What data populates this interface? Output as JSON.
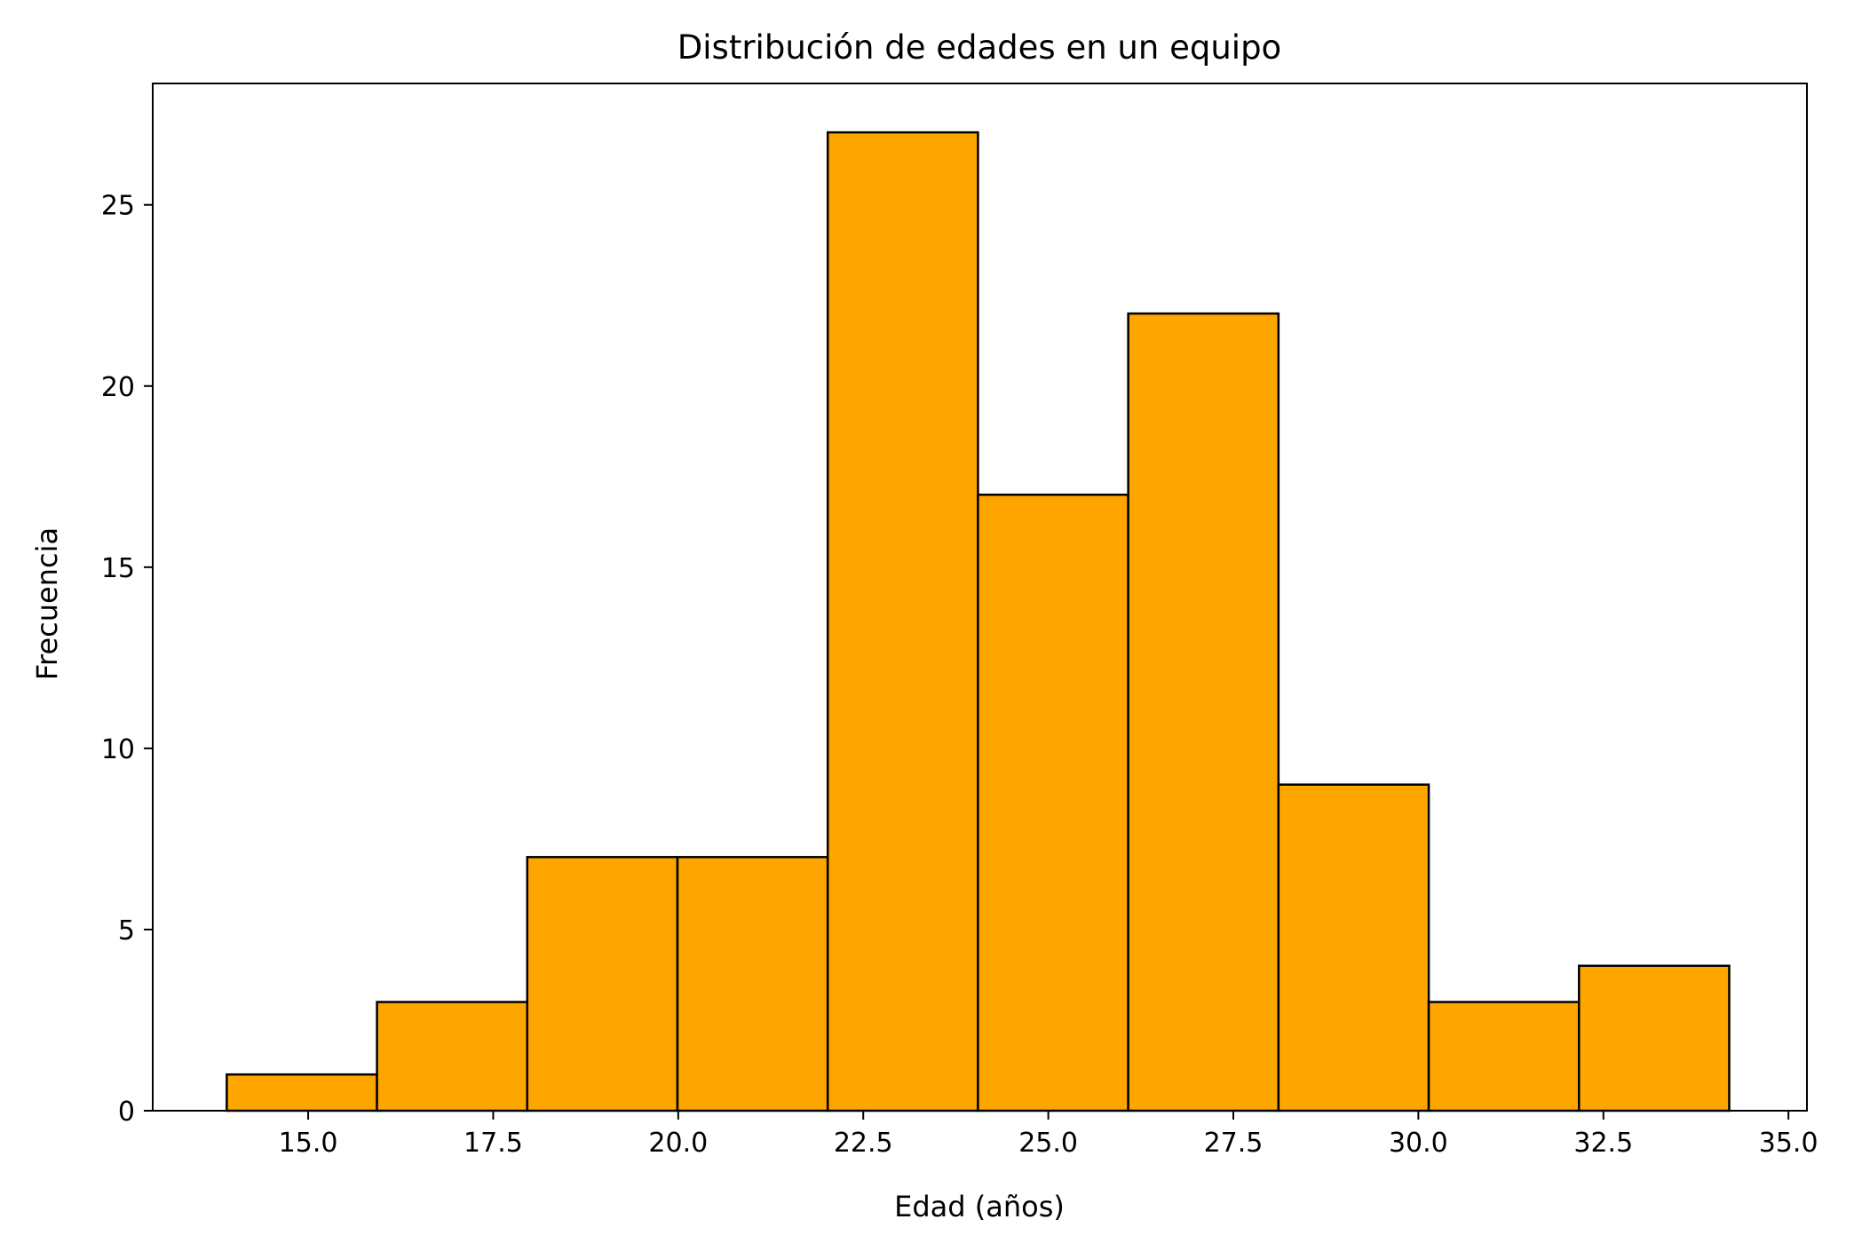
{
  "chart_data": {
    "type": "bar",
    "subtype": "histogram",
    "title": "Distribución de edades en un equipo",
    "xlabel": "Edad (años)",
    "ylabel": "Frecuencia",
    "bins": [
      {
        "start": 13.9,
        "end": 15.93,
        "count": 1
      },
      {
        "start": 15.93,
        "end": 17.96,
        "count": 3
      },
      {
        "start": 17.96,
        "end": 19.99,
        "count": 7
      },
      {
        "start": 19.99,
        "end": 22.02,
        "count": 7
      },
      {
        "start": 22.02,
        "end": 24.05,
        "count": 27
      },
      {
        "start": 24.05,
        "end": 26.08,
        "count": 17
      },
      {
        "start": 26.08,
        "end": 28.11,
        "count": 22
      },
      {
        "start": 28.11,
        "end": 30.14,
        "count": 9
      },
      {
        "start": 30.14,
        "end": 32.17,
        "count": 3
      },
      {
        "start": 32.17,
        "end": 34.2,
        "count": 4
      }
    ],
    "xlim": [
      12.9,
      35.25
    ],
    "ylim": [
      0,
      28.35
    ],
    "xticks": [
      "15.0",
      "17.5",
      "20.0",
      "22.5",
      "25.0",
      "27.5",
      "30.0",
      "32.5",
      "35.0"
    ],
    "yticks": [
      "0",
      "5",
      "10",
      "15",
      "20",
      "25"
    ],
    "bar_color": "#FFA500",
    "edge_color": "#000000",
    "grid": false,
    "legend": "none"
  }
}
